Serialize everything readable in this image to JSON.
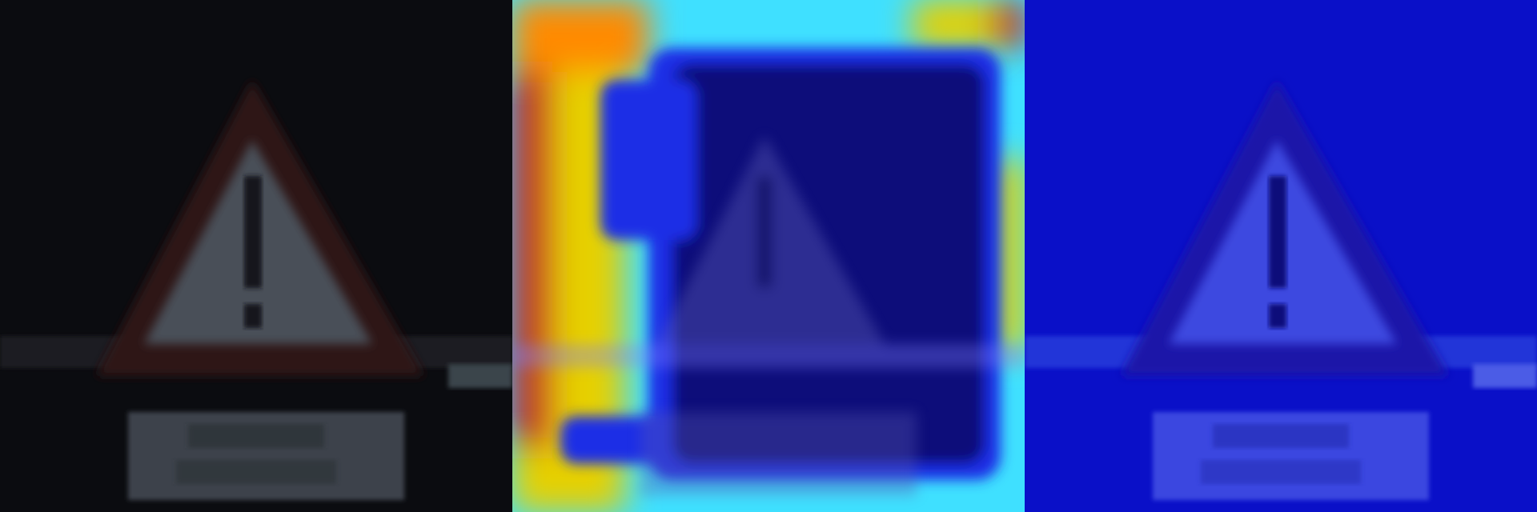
{
  "figure": {
    "description_type": "image-triptych",
    "panels": [
      {
        "id": "original",
        "kind": "photo",
        "subject": "warning-triangle-sign-exclamation"
      },
      {
        "id": "heatmap",
        "kind": "attention-heatmap",
        "colormap": "jet"
      },
      {
        "id": "overlay",
        "kind": "blue-tinted-overlay"
      }
    ]
  },
  "colors": {
    "dark_bg": "#0b0c10",
    "sign_red": "#3a1414",
    "sign_face": "#4a5058",
    "plate_face": "#3c434b",
    "jet_red": "#c8141e",
    "jet_yellow": "#e6d000",
    "jet_cyan": "#3fe0ff",
    "jet_blue": "#1a2ee6",
    "deep_blue": "#0a0a7a",
    "overlay_blue": "#0a10c8"
  },
  "icons": {
    "sign": "warning-triangle-icon",
    "mark": "exclamation-icon"
  }
}
